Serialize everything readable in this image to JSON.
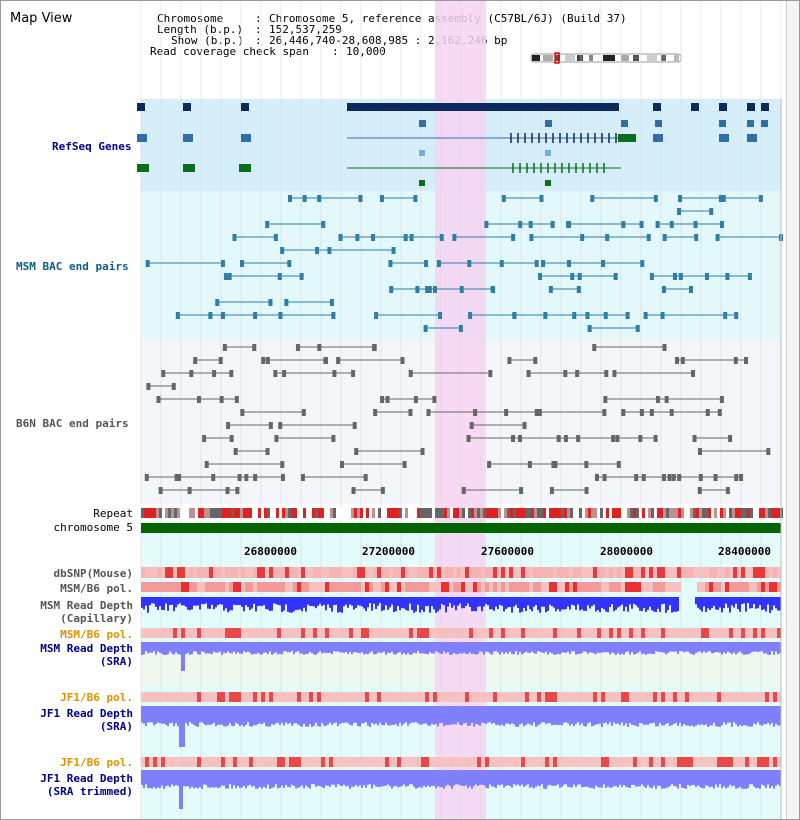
{
  "title": "Map View",
  "header": {
    "chromosome_key": "Chromosome",
    "chromosome_val": "Chromosome 5, reference assembly (C57BL/6J) (Build 37)",
    "length_key": "Length (b.p.)",
    "length_val": "152,537,259",
    "show_key": "Show (b.p.)",
    "show_val": "26,446,740-28,608,985 : 2,162,246 bp",
    "coverage_key": "Read coverage check span",
    "coverage_val": "10,000"
  },
  "tracks": {
    "refseq": "RefSeq Genes",
    "msm_bac": "MSM BAC end pairs",
    "b6n_bac": "B6N BAC end pairs",
    "repeat": "Repeat",
    "chromosome": "chromosome 5",
    "dbsnp": "dbSNP(Mouse)",
    "msm_b6_pol_1": "MSM/B6 pol.",
    "msm_read_depth_cap_1": "MSM Read Depth",
    "msm_read_depth_cap_2": "(Capillary)",
    "msm_b6_pol_2": "MSM/B6 pol.",
    "msm_read_depth_sra_1": "MSM Read Depth",
    "msm_read_depth_sra_2": "(SRA)",
    "jf1_b6_pol_1": "JF1/B6 pol.",
    "jf1_read_depth_sra_1": "JF1 Read Depth",
    "jf1_read_depth_sra_2": "(SRA)",
    "jf1_b6_pol_2": "JF1/B6 pol.",
    "jf1_read_depth_trim_1": "JF1 Read Depth",
    "jf1_read_depth_trim_2": "(SRA trimmed)"
  },
  "axis_ticks": [
    "26800000",
    "27200000",
    "27600000",
    "28000000",
    "28400000"
  ],
  "colors": {
    "refseq_dark": "#0d2a5c",
    "refseq_mid": "#2f6fa7",
    "refseq_green": "#0a6e1e",
    "msm_bac_line": "#2f7ea8",
    "b6n_bac_line": "#666666",
    "highlight": "#f7d4f2",
    "chromosome_bar": "#006400",
    "depth_blue": "#3333ff",
    "depth_light": "#8080ff",
    "pol_red": "#ee3333",
    "pol_light": "#f4a0a0",
    "label_blue": "#00008b",
    "label_teal": "#0b5e85",
    "label_gray": "#555555",
    "label_orange": "#e09000"
  }
}
